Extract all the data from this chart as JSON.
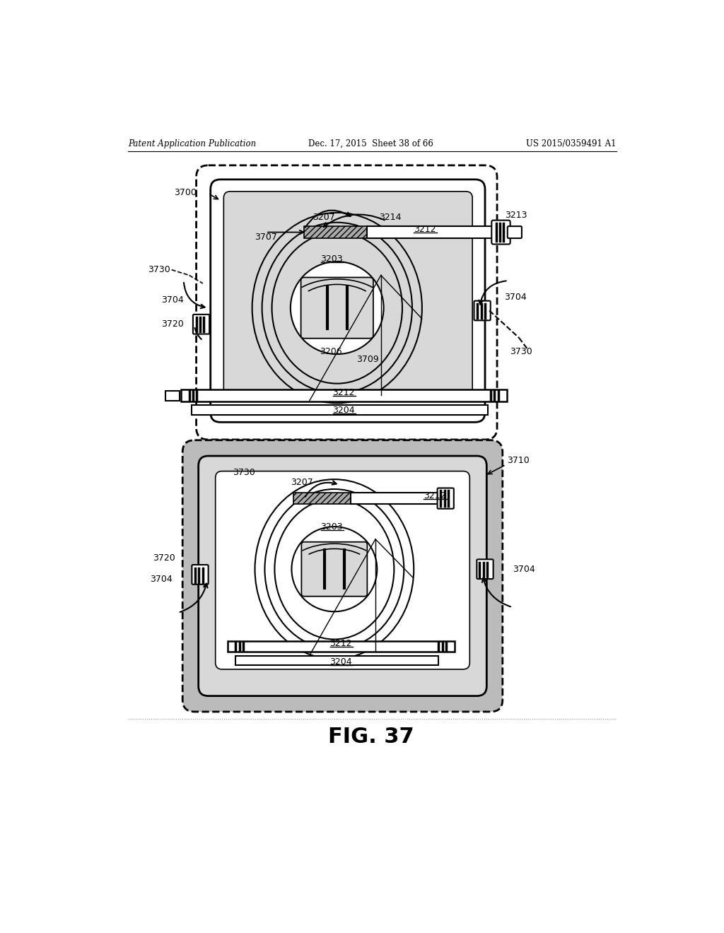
{
  "title_left": "Patent Application Publication",
  "title_mid": "Dec. 17, 2015  Sheet 38 of 66",
  "title_right": "US 2015/0359491 A1",
  "fig_label": "FIG. 37",
  "bg_color": "#ffffff",
  "lc": "#000000",
  "gray": "#bbbbbb",
  "lgray": "#d8d8d8"
}
